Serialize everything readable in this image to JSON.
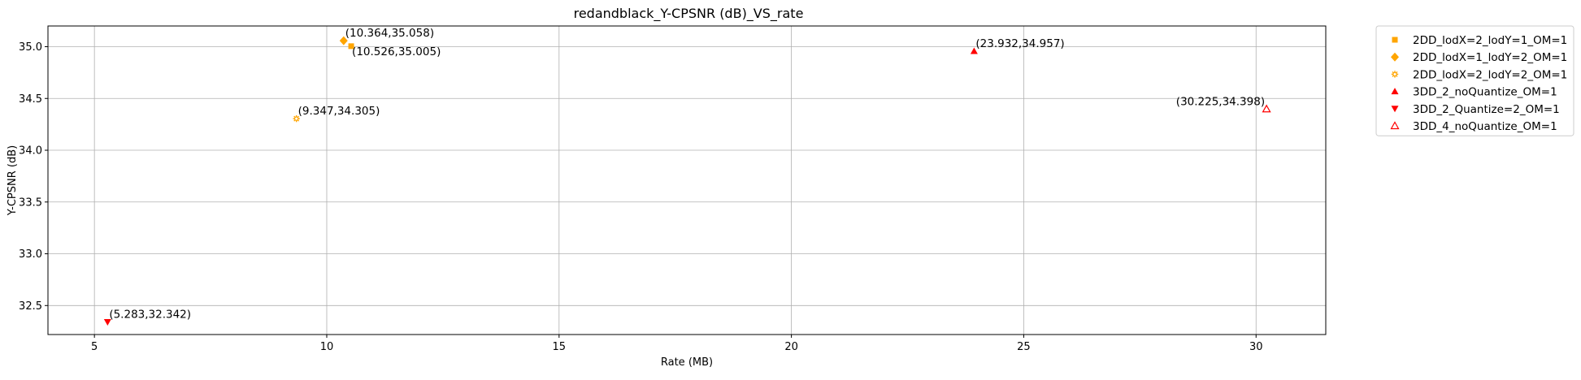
{
  "chart_data": {
    "type": "scatter",
    "title": "redandblack_Y-CPSNR (dB)_VS_rate",
    "xlabel": "Rate (MB)",
    "ylabel": "Y-CPSNR (dB)",
    "xlim": [
      4.0,
      31.5
    ],
    "ylim": [
      32.22,
      35.2
    ],
    "xticks": [
      5,
      10,
      15,
      20,
      25,
      30
    ],
    "yticks": [
      32.5,
      33.0,
      33.5,
      34.0,
      34.5,
      35.0
    ],
    "xtick_labels": [
      "5",
      "10",
      "15",
      "20",
      "25",
      "30"
    ],
    "ytick_labels": [
      "32.5",
      "33.0",
      "33.5",
      "34.0",
      "34.5",
      "35.0"
    ],
    "grid": true,
    "legend_position": "outside-top-right",
    "series": [
      {
        "name": "2DD_lodX=2_lodY=1_OM=1",
        "marker": "square",
        "color": "#ffa500",
        "filled": true,
        "points": [
          {
            "x": 10.526,
            "y": 35.005,
            "label": "(10.526,35.005)"
          }
        ]
      },
      {
        "name": "2DD_lodX=1_lodY=2_OM=1",
        "marker": "diamond",
        "color": "#ffa500",
        "filled": true,
        "points": [
          {
            "x": 10.364,
            "y": 35.058,
            "label": "(10.364,35.058)"
          }
        ]
      },
      {
        "name": "2DD_lodX=2_lodY=2_OM=1",
        "marker": "gear",
        "color": "#ffa500",
        "filled": false,
        "points": [
          {
            "x": 9.347,
            "y": 34.305,
            "label": "(9.347,34.305)"
          }
        ]
      },
      {
        "name": "3DD_2_noQuantize_OM=1",
        "marker": "triangle-up",
        "color": "#ff0000",
        "filled": true,
        "points": [
          {
            "x": 23.932,
            "y": 34.957,
            "label": "(23.932,34.957)"
          }
        ]
      },
      {
        "name": "3DD_2_Quantize=2_OM=1",
        "marker": "triangle-down",
        "color": "#ff0000",
        "filled": true,
        "points": [
          {
            "x": 5.283,
            "y": 32.342,
            "label": "(5.283,32.342)"
          }
        ]
      },
      {
        "name": "3DD_4_noQuantize_OM=1",
        "marker": "triangle-up",
        "color": "#ff0000",
        "filled": false,
        "points": [
          {
            "x": 30.225,
            "y": 34.398,
            "label": "(30.225,34.398)"
          }
        ]
      }
    ]
  }
}
